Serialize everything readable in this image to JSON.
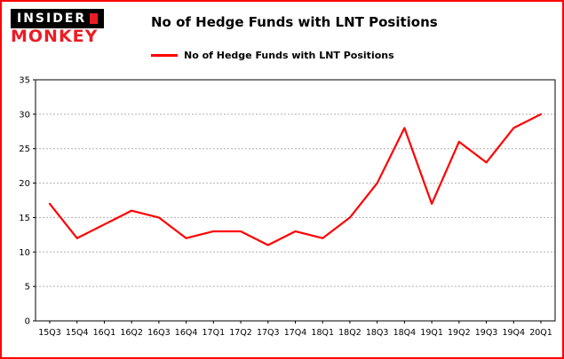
{
  "logo": {
    "line1": "INSIDER",
    "line2": "MONKEY"
  },
  "title": "No of Hedge Funds with LNT Positions",
  "legend": {
    "label": "No of Hedge Funds with LNT Positions",
    "color": "#ff0000"
  },
  "colors": {
    "line": "#ff0000",
    "border": "#fe0000",
    "grid": "#b0b0b0",
    "axis": "#000000",
    "logo_red": "#ed1c24"
  },
  "chart_data": {
    "type": "line",
    "title": "No of Hedge Funds with LNT Positions",
    "categories": [
      "15Q3",
      "15Q4",
      "16Q1",
      "16Q2",
      "16Q3",
      "16Q4",
      "17Q1",
      "17Q2",
      "17Q3",
      "17Q4",
      "18Q1",
      "18Q2",
      "18Q3",
      "18Q4",
      "19Q1",
      "19Q2",
      "19Q3",
      "19Q4",
      "20Q1"
    ],
    "series": [
      {
        "name": "No of Hedge Funds with LNT Positions",
        "values": [
          17,
          12,
          14,
          16,
          15,
          12,
          13,
          13,
          11,
          13,
          12,
          15,
          20,
          28,
          17,
          26,
          23,
          28,
          30
        ]
      }
    ],
    "xlabel": "",
    "ylabel": "",
    "ylim": [
      0,
      35
    ],
    "yticks": [
      0,
      5,
      10,
      15,
      20,
      25,
      30,
      35
    ],
    "grid": true,
    "grid_style": "dashed",
    "line_color": "#ff0000",
    "legend_position": "top-left"
  }
}
